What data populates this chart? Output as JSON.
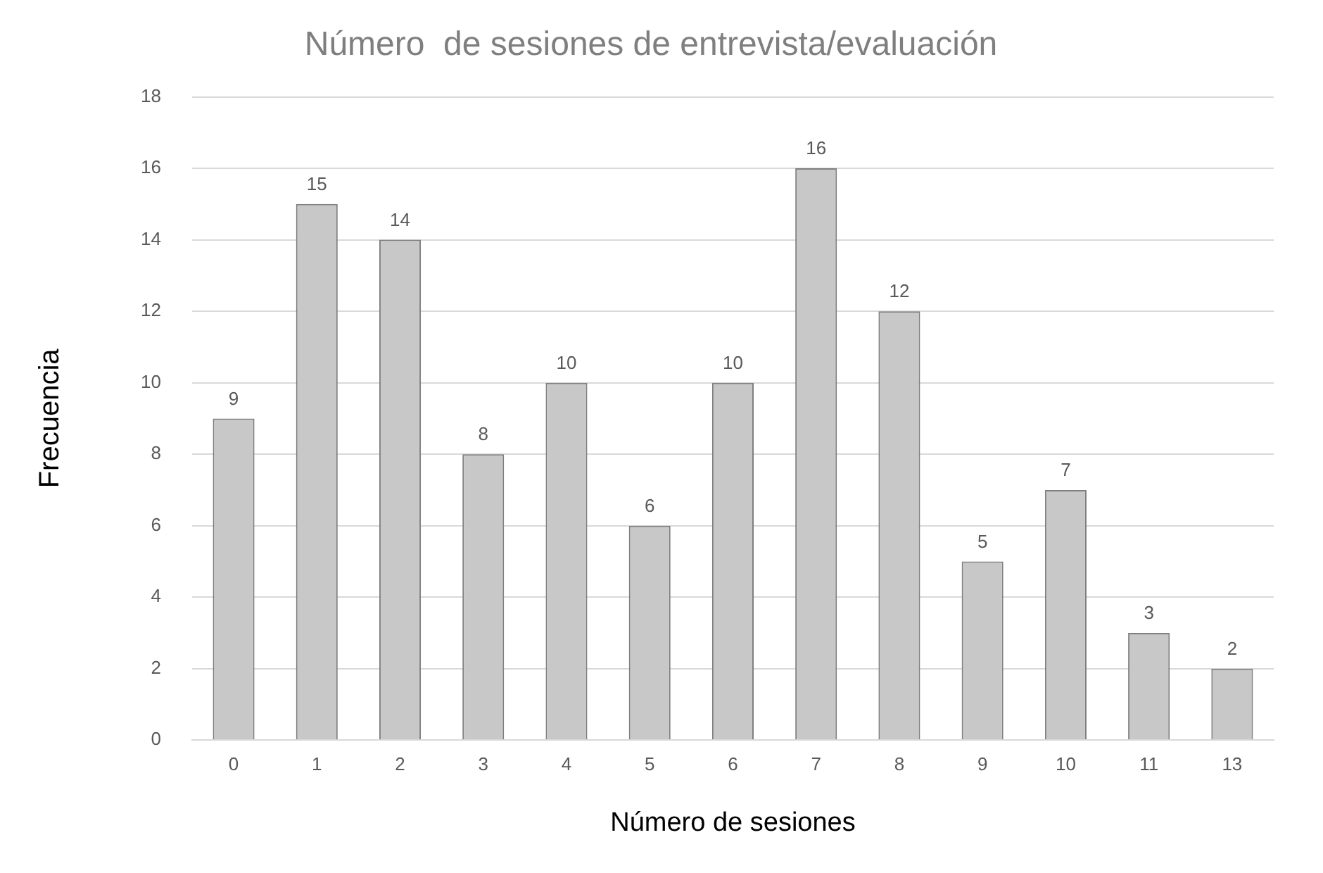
{
  "chart_data": {
    "type": "bar",
    "title": "Número  de sesiones de entrevista/evaluación",
    "xlabel": "Número de sesiones",
    "ylabel": "Frecuencia",
    "categories": [
      "0",
      "1",
      "2",
      "3",
      "4",
      "5",
      "6",
      "7",
      "8",
      "9",
      "10",
      "11",
      "13"
    ],
    "values": [
      9,
      15,
      14,
      8,
      10,
      6,
      10,
      16,
      12,
      5,
      7,
      3,
      2
    ],
    "color": "#c8c8c8",
    "ylim": [
      0,
      18
    ],
    "yticks": [
      0,
      2,
      4,
      6,
      8,
      10,
      12,
      14,
      16,
      18
    ],
    "grid": "y",
    "data_labels": true,
    "legend": false
  }
}
